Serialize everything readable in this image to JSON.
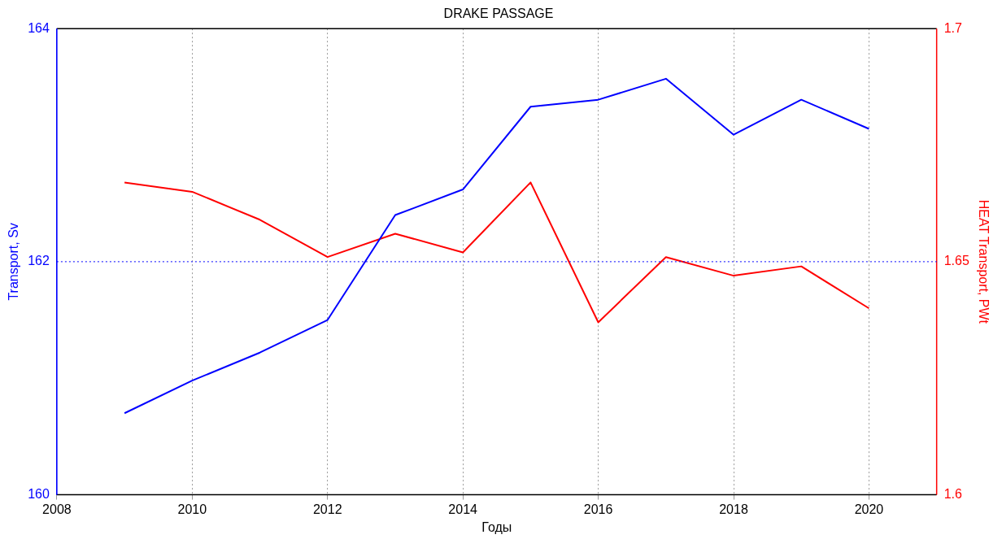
{
  "chart_data": {
    "type": "line",
    "title": "DRAKE PASSAGE",
    "xlabel": "Годы",
    "ylabel": "Transport, Sv",
    "y2label": "HEAT Transport, PWt",
    "x": [
      2009,
      2010,
      2011,
      2012,
      2013,
      2014,
      2015,
      2016,
      2017,
      2018,
      2019,
      2020
    ],
    "series": [
      {
        "color": "#0000ff",
        "values": [
          160.7,
          160.98,
          161.22,
          161.5,
          162.4,
          162.62,
          163.33,
          163.39,
          163.57,
          163.09,
          163.39,
          163.14
        ]
      },
      {
        "color": "#ff0000",
        "axis": "y2",
        "values": [
          1.667,
          1.665,
          1.659,
          1.651,
          1.656,
          1.652,
          1.667,
          1.637,
          1.651,
          1.647,
          1.649,
          1.64
        ]
      }
    ],
    "xlim": [
      2008,
      2021
    ],
    "xticks": [
      2008,
      2010,
      2012,
      2014,
      2016,
      2018,
      2020
    ],
    "ylim": [
      160,
      164
    ],
    "yticks": [
      160,
      162,
      164
    ],
    "y2lim": [
      1.6,
      1.7
    ],
    "y2ticks": [
      1.6,
      1.65,
      1.7
    ],
    "ref_lines": [
      {
        "axis": "y",
        "value": 162,
        "color": "#0000ff",
        "line_style": "dotted"
      }
    ],
    "grid": "x",
    "legend": false,
    "marker": "none",
    "line_style": "solid"
  }
}
